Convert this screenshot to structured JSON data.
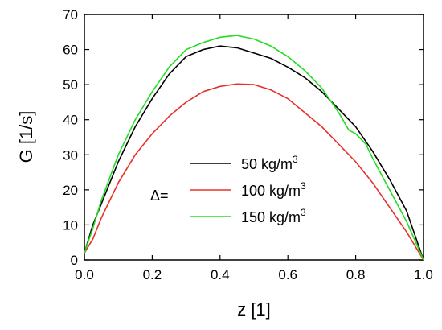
{
  "chart_data": {
    "type": "line",
    "xlabel": "z [1]",
    "ylabel": "G [1/s]",
    "xlim": [
      0.0,
      1.0
    ],
    "ylim": [
      0,
      70
    ],
    "xticks": [
      "0.0",
      "0.2",
      "0.4",
      "0.6",
      "0.8",
      "1.0"
    ],
    "yticks": [
      "0",
      "10",
      "20",
      "30",
      "40",
      "50",
      "60",
      "70"
    ],
    "grid": false,
    "legend": {
      "placement": "center",
      "prefix": "Δ=",
      "entries": [
        {
          "label": "50 kg/m",
          "sup": "3",
          "color": "#000000"
        },
        {
          "label": "100 kg/m",
          "sup": "3",
          "color": "#e8302a"
        },
        {
          "label": "150 kg/m",
          "sup": "3",
          "color": "#22dd22"
        }
      ]
    },
    "series": [
      {
        "name": "50 kg/m3",
        "color": "#000000",
        "points": [
          [
            0.0,
            2
          ],
          [
            0.025,
            10
          ],
          [
            0.05,
            16
          ],
          [
            0.1,
            28
          ],
          [
            0.15,
            38
          ],
          [
            0.2,
            46
          ],
          [
            0.25,
            53
          ],
          [
            0.3,
            58
          ],
          [
            0.35,
            60
          ],
          [
            0.4,
            61
          ],
          [
            0.45,
            60.5
          ],
          [
            0.5,
            59
          ],
          [
            0.55,
            57.5
          ],
          [
            0.6,
            55
          ],
          [
            0.65,
            52
          ],
          [
            0.7,
            48
          ],
          [
            0.75,
            43
          ],
          [
            0.8,
            38
          ],
          [
            0.85,
            31
          ],
          [
            0.9,
            23
          ],
          [
            0.95,
            14
          ],
          [
            1.0,
            0
          ]
        ]
      },
      {
        "name": "100 kg/m3",
        "color": "#e8302a",
        "points": [
          [
            0.0,
            2
          ],
          [
            0.025,
            6
          ],
          [
            0.05,
            12
          ],
          [
            0.1,
            22
          ],
          [
            0.15,
            30
          ],
          [
            0.2,
            36
          ],
          [
            0.25,
            41
          ],
          [
            0.3,
            45
          ],
          [
            0.35,
            48
          ],
          [
            0.4,
            49.5
          ],
          [
            0.45,
            50.2
          ],
          [
            0.5,
            50
          ],
          [
            0.55,
            48.5
          ],
          [
            0.6,
            46
          ],
          [
            0.65,
            42
          ],
          [
            0.7,
            38
          ],
          [
            0.75,
            33
          ],
          [
            0.8,
            28
          ],
          [
            0.85,
            22
          ],
          [
            0.9,
            15
          ],
          [
            0.95,
            8
          ],
          [
            1.0,
            0
          ]
        ]
      },
      {
        "name": "150 kg/m3",
        "color": "#22dd22",
        "points": [
          [
            0.0,
            2
          ],
          [
            0.025,
            9
          ],
          [
            0.05,
            17
          ],
          [
            0.1,
            30
          ],
          [
            0.15,
            40
          ],
          [
            0.2,
            48
          ],
          [
            0.25,
            55
          ],
          [
            0.3,
            60
          ],
          [
            0.35,
            62
          ],
          [
            0.4,
            63.5
          ],
          [
            0.45,
            64
          ],
          [
            0.5,
            63
          ],
          [
            0.55,
            61
          ],
          [
            0.6,
            58
          ],
          [
            0.65,
            54
          ],
          [
            0.7,
            49
          ],
          [
            0.75,
            42
          ],
          [
            0.78,
            37
          ],
          [
            0.8,
            36
          ],
          [
            0.83,
            33
          ],
          [
            0.85,
            29
          ],
          [
            0.9,
            20
          ],
          [
            0.95,
            11
          ],
          [
            1.0,
            0
          ]
        ]
      }
    ]
  }
}
